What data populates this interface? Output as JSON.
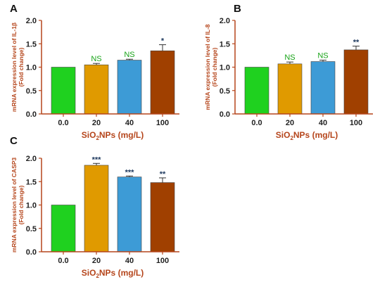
{
  "colors": {
    "axis": "#b5451b",
    "bars": [
      "#1fd11f",
      "#e09a00",
      "#3d9bd6",
      "#a04000"
    ],
    "sig_ns": "#17a317",
    "sig_star": "#1f3a5f"
  },
  "chart_data": [
    {
      "panel": "A",
      "type": "bar",
      "categories": [
        "0.0",
        "20",
        "40",
        "100"
      ],
      "values": [
        1.0,
        1.05,
        1.15,
        1.35
      ],
      "errors": [
        0.0,
        0.03,
        0.02,
        0.13
      ],
      "significance": [
        "",
        "NS",
        "NS",
        "*"
      ],
      "ylabel_line1": "mRNA expression level of IL-1β",
      "ylabel_line2": "(Fold change)",
      "xlabel_main": "SiO",
      "xlabel_sub": "2",
      "xlabel_rest": "NPs (mg/L)",
      "yticks": [
        "0.0",
        "0.5",
        "1.0",
        "1.5",
        "2.0"
      ],
      "ylim": [
        0,
        2
      ]
    },
    {
      "panel": "B",
      "type": "bar",
      "categories": [
        "0.0",
        "20",
        "40",
        "100"
      ],
      "values": [
        1.0,
        1.07,
        1.12,
        1.37
      ],
      "errors": [
        0.0,
        0.04,
        0.03,
        0.08
      ],
      "significance": [
        "",
        "NS",
        "NS",
        "**"
      ],
      "ylabel_line1": "mRNA expression level of IL-8",
      "ylabel_line2": "(Fold change)",
      "xlabel_main": "SiO",
      "xlabel_sub": "2",
      "xlabel_rest": "NPs (mg/L)",
      "yticks": [
        "0.0",
        "0.5",
        "1.0",
        "1.5",
        "2.0"
      ],
      "ylim": [
        0,
        2
      ]
    },
    {
      "panel": "C",
      "type": "bar",
      "categories": [
        "0.0",
        "20",
        "40",
        "100"
      ],
      "values": [
        1.0,
        1.85,
        1.6,
        1.48
      ],
      "errors": [
        0.0,
        0.04,
        0.02,
        0.1
      ],
      "significance": [
        "",
        "***",
        "***",
        "**"
      ],
      "ylabel_line1": "mRNA expression level of CASP3",
      "ylabel_line2": "(Fold change)",
      "xlabel_main": "SiO",
      "xlabel_sub": "2",
      "xlabel_rest": "NPs (mg/L)",
      "yticks": [
        "0.0",
        "0.5",
        "1.0",
        "1.5",
        "2.0"
      ],
      "ylim": [
        0,
        2
      ]
    }
  ]
}
